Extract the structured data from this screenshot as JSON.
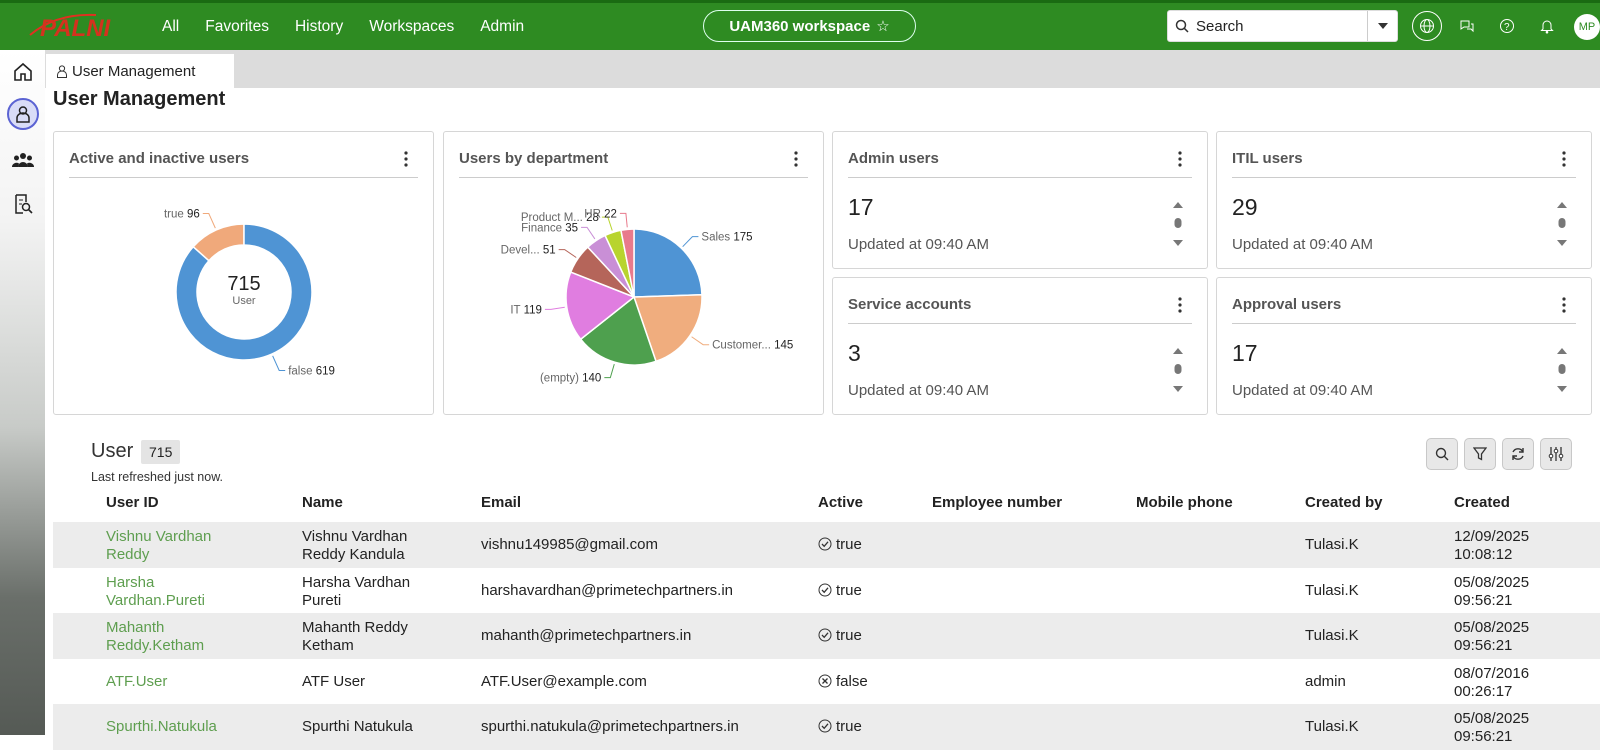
{
  "app": {
    "logo_text": "PALNI"
  },
  "nav": [
    "All",
    "Favorites",
    "History",
    "Workspaces",
    "Admin"
  ],
  "workspace": {
    "label": "UAM360 workspace",
    "star": "☆"
  },
  "search": {
    "placeholder": "Search"
  },
  "user": {
    "initials": "MP"
  },
  "tab": {
    "label": "User Management"
  },
  "page": {
    "title": "User Management"
  },
  "cards": {
    "active_inactive": {
      "title": "Active and inactive users",
      "total": "715",
      "total_label": "User"
    },
    "by_department": {
      "title": "Users by department"
    },
    "admin": {
      "title": "Admin users",
      "value": "17",
      "updated": "Updated at 09:40 AM"
    },
    "itil": {
      "title": "ITIL users",
      "value": "29",
      "updated": "Updated at 09:40 AM"
    },
    "service": {
      "title": "Service accounts",
      "value": "3",
      "updated": "Updated at 09:40 AM"
    },
    "approval": {
      "title": "Approval users",
      "value": "17",
      "updated": "Updated at 09:40 AM"
    }
  },
  "chart_data": [
    {
      "type": "pie",
      "variant": "donut",
      "title": "Active and inactive users",
      "categories": [
        "false",
        "true"
      ],
      "values": [
        619,
        96
      ],
      "colors": [
        "#4f94d4",
        "#f0a97b"
      ]
    },
    {
      "type": "pie",
      "title": "Users by department",
      "categories": [
        "Sales",
        "Customer...",
        "(empty)",
        "IT",
        "Devel...",
        "Finance",
        "Product M...",
        "HR"
      ],
      "values": [
        175,
        145,
        140,
        119,
        51,
        35,
        28,
        22
      ],
      "colors": [
        "#4f94d4",
        "#f0ad7e",
        "#4ea04e",
        "#e07de0",
        "#b5655a",
        "#c98fd6",
        "#b8d42e",
        "#e87a8c"
      ]
    }
  ],
  "table": {
    "title": "User",
    "count": "715",
    "refreshed": "Last refreshed just now.",
    "columns": [
      "User ID",
      "Name",
      "Email",
      "Active",
      "Employee number",
      "Mobile phone",
      "Created by",
      "Created"
    ],
    "rows": [
      {
        "uid1": "Vishnu Vardhan",
        "uid2": "Reddy",
        "name1": "Vishnu Vardhan",
        "name2": "Reddy Kandula",
        "email": "vishnu149985@gmail.com",
        "active": "true",
        "created_by": "Tulasi.K",
        "date": "12/09/2025",
        "time": "10:08:12"
      },
      {
        "uid1": "Harsha",
        "uid2": "Vardhan.Pureti",
        "name1": "Harsha Vardhan",
        "name2": "Pureti",
        "email": "harshavardhan@primetechpartners.in",
        "active": "true",
        "created_by": "Tulasi.K",
        "date": "05/08/2025",
        "time": "09:56:21"
      },
      {
        "uid1": "Mahanth",
        "uid2": "Reddy.Ketham",
        "name1": "Mahanth Reddy",
        "name2": "Ketham",
        "email": "mahanth@primetechpartners.in",
        "active": "true",
        "created_by": "Tulasi.K",
        "date": "05/08/2025",
        "time": "09:56:21"
      },
      {
        "uid1": "ATF.User",
        "uid2": "",
        "name1": "ATF User",
        "name2": "",
        "email": "ATF.User@example.com",
        "active": "false",
        "created_by": "admin",
        "date": "08/07/2016",
        "time": "00:26:17"
      },
      {
        "uid1": "Spurthi.Natukula",
        "uid2": "",
        "name1": "Spurthi Natukula",
        "name2": "",
        "email": "spurthi.natukula@primetechpartners.in",
        "active": "true",
        "created_by": "Tulasi.K",
        "date": "05/08/2025",
        "time": "09:56:21"
      }
    ]
  }
}
